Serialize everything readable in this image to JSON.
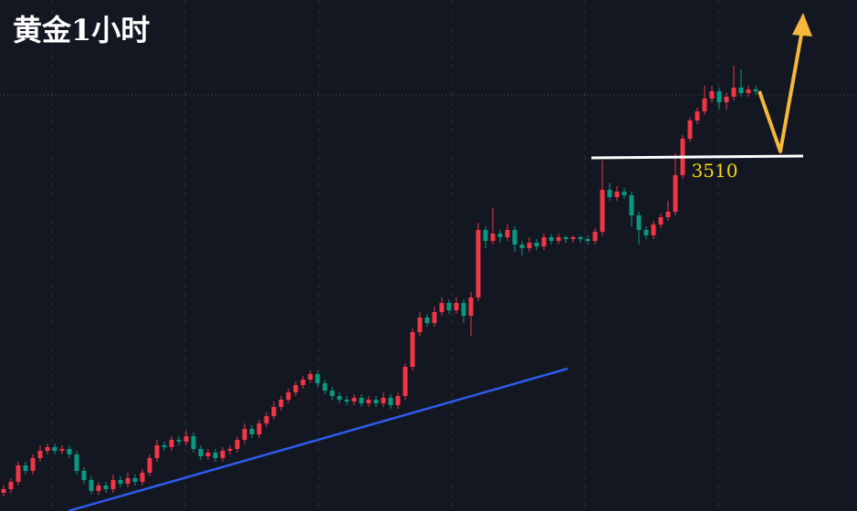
{
  "chart_data": {
    "type": "candlestick",
    "title": "黄金1小时",
    "ylim": [
      3316,
      3596
    ],
    "up_color": "#f23645",
    "down_color": "#089981",
    "support_level": 3510,
    "candles": [
      [
        3326,
        3330,
        3324,
        3328
      ],
      [
        3328,
        3334,
        3326,
        3332
      ],
      [
        3332,
        3343,
        3330,
        3341
      ],
      [
        3341,
        3343,
        3336,
        3338
      ],
      [
        3338,
        3347,
        3336,
        3345
      ],
      [
        3345,
        3352,
        3343,
        3349
      ],
      [
        3349,
        3353,
        3347,
        3351
      ],
      [
        3351,
        3353,
        3347,
        3349
      ],
      [
        3349,
        3352,
        3347,
        3350
      ],
      [
        3350,
        3352,
        3345,
        3347
      ],
      [
        3347,
        3349,
        3336,
        3338
      ],
      [
        3338,
        3340,
        3331,
        3333
      ],
      [
        3333,
        3335,
        3325,
        3327
      ],
      [
        3327,
        3332,
        3325,
        3330
      ],
      [
        3330,
        3332,
        3326,
        3328
      ],
      [
        3328,
        3336,
        3326,
        3333
      ],
      [
        3333,
        3335,
        3329,
        3331
      ],
      [
        3331,
        3337,
        3329,
        3334
      ],
      [
        3334,
        3336,
        3330,
        3332
      ],
      [
        3332,
        3339,
        3330,
        3337
      ],
      [
        3337,
        3347,
        3335,
        3345
      ],
      [
        3345,
        3355,
        3343,
        3352
      ],
      [
        3352,
        3354,
        3349,
        3351
      ],
      [
        3351,
        3357,
        3349,
        3355
      ],
      [
        3355,
        3357,
        3352,
        3354
      ],
      [
        3354,
        3360,
        3352,
        3357
      ],
      [
        3357,
        3359,
        3348,
        3350
      ],
      [
        3350,
        3352,
        3344,
        3346
      ],
      [
        3346,
        3350,
        3344,
        3348
      ],
      [
        3348,
        3350,
        3343,
        3345
      ],
      [
        3345,
        3351,
        3343,
        3349
      ],
      [
        3349,
        3352,
        3347,
        3350
      ],
      [
        3350,
        3357,
        3348,
        3355
      ],
      [
        3355,
        3364,
        3353,
        3361
      ],
      [
        3361,
        3363,
        3356,
        3358
      ],
      [
        3358,
        3366,
        3356,
        3364
      ],
      [
        3364,
        3370,
        3362,
        3368
      ],
      [
        3368,
        3376,
        3366,
        3373
      ],
      [
        3373,
        3379,
        3371,
        3377
      ],
      [
        3377,
        3383,
        3375,
        3381
      ],
      [
        3381,
        3387,
        3379,
        3385
      ],
      [
        3385,
        3390,
        3383,
        3388
      ],
      [
        3388,
        3393,
        3386,
        3391
      ],
      [
        3391,
        3393,
        3384,
        3386
      ],
      [
        3386,
        3388,
        3380,
        3382
      ],
      [
        3382,
        3384,
        3377,
        3379
      ],
      [
        3379,
        3381,
        3375,
        3377
      ],
      [
        3377,
        3379,
        3374,
        3376
      ],
      [
        3376,
        3380,
        3374,
        3378
      ],
      [
        3378,
        3380,
        3373,
        3375
      ],
      [
        3375,
        3379,
        3373,
        3377
      ],
      [
        3377,
        3379,
        3373,
        3375
      ],
      [
        3375,
        3381,
        3373,
        3378
      ],
      [
        3378,
        3380,
        3372,
        3374
      ],
      [
        3374,
        3381,
        3372,
        3379
      ],
      [
        3379,
        3397,
        3377,
        3395
      ],
      [
        3395,
        3416,
        3393,
        3414
      ],
      [
        3414,
        3425,
        3412,
        3422
      ],
      [
        3422,
        3424,
        3417,
        3419
      ],
      [
        3419,
        3428,
        3417,
        3425
      ],
      [
        3425,
        3433,
        3423,
        3430
      ],
      [
        3430,
        3432,
        3424,
        3426
      ],
      [
        3426,
        3433,
        3424,
        3430
      ],
      [
        3430,
        3432,
        3419,
        3423
      ],
      [
        3423,
        3436,
        3412,
        3433
      ],
      [
        3433,
        3474,
        3431,
        3470
      ],
      [
        3470,
        3472,
        3460,
        3464
      ],
      [
        3464,
        3482,
        3462,
        3468
      ],
      [
        3468,
        3470,
        3463,
        3466
      ],
      [
        3466,
        3473,
        3464,
        3470
      ],
      [
        3470,
        3472,
        3458,
        3462
      ],
      [
        3462,
        3464,
        3456,
        3460
      ],
      [
        3460,
        3466,
        3458,
        3463
      ],
      [
        3463,
        3465,
        3459,
        3461
      ],
      [
        3461,
        3468,
        3459,
        3466
      ],
      [
        3466,
        3468,
        3462,
        3464
      ],
      [
        3464,
        3468,
        3462,
        3466
      ],
      [
        3466,
        3467,
        3463,
        3465
      ],
      [
        3465,
        3467,
        3463,
        3466
      ],
      [
        3466,
        3467,
        3463,
        3465
      ],
      [
        3465,
        3467,
        3462,
        3464
      ],
      [
        3464,
        3471,
        3462,
        3469
      ],
      [
        3469,
        3508,
        3467,
        3492
      ],
      [
        3492,
        3496,
        3486,
        3488
      ],
      [
        3488,
        3494,
        3486,
        3491
      ],
      [
        3491,
        3493,
        3487,
        3489
      ],
      [
        3489,
        3491,
        3472,
        3478
      ],
      [
        3478,
        3480,
        3462,
        3470
      ],
      [
        3470,
        3472,
        3465,
        3467
      ],
      [
        3467,
        3475,
        3465,
        3473
      ],
      [
        3473,
        3479,
        3471,
        3477
      ],
      [
        3477,
        3486,
        3475,
        3480
      ],
      [
        3480,
        3512,
        3478,
        3500
      ],
      [
        3500,
        3522,
        3498,
        3520
      ],
      [
        3520,
        3532,
        3518,
        3530
      ],
      [
        3530,
        3537,
        3528,
        3535
      ],
      [
        3535,
        3549,
        3533,
        3542
      ],
      [
        3542,
        3549,
        3540,
        3546
      ],
      [
        3546,
        3548,
        3536,
        3540
      ],
      [
        3540,
        3545,
        3536,
        3543
      ],
      [
        3543,
        3560,
        3541,
        3548
      ],
      [
        3548,
        3558,
        3543,
        3545
      ],
      [
        3545,
        3549,
        3543,
        3547
      ],
      [
        3547,
        3549,
        3544,
        3546
      ]
    ]
  }
}
